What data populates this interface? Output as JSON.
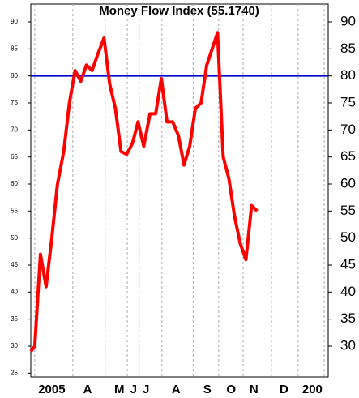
{
  "chart_data": {
    "type": "line",
    "title": "Money Flow Index (55.1740)",
    "x": [
      0,
      0.7,
      1.7,
      2.7,
      3.7,
      4.7,
      5.8,
      6.8,
      7.8,
      8.8,
      9.8,
      10.8,
      11.8,
      12.9,
      13.9,
      14.9,
      15.9,
      16.9,
      17.9,
      18.9,
      19.9,
      21,
      22,
      23,
      24,
      25,
      26,
      27,
      28,
      29,
      30,
      31,
      32.9,
      33.9,
      34.9,
      35.9,
      36.9,
      37.9,
      38.9,
      39.9
    ],
    "series": [
      {
        "color": "#ff0000",
        "values": [
          29,
          30,
          47,
          41,
          50,
          60,
          66,
          75,
          81,
          79,
          82,
          81,
          84,
          87,
          78.5,
          74,
          66,
          65.5,
          67.5,
          71.5,
          67,
          73,
          73,
          79.5,
          71.5,
          71.5,
          69,
          63.5,
          67,
          74,
          75,
          82,
          88,
          65,
          61,
          54,
          49,
          46,
          56,
          55
        ]
      }
    ],
    "xlim": [
      0,
      52.4
    ],
    "xticks": [
      {
        "value": 3.7,
        "label": "2005"
      },
      {
        "value": 10,
        "label": "A"
      },
      {
        "value": 15.6,
        "label": "M"
      },
      {
        "value": 18.1,
        "label": "J"
      },
      {
        "value": 20.3,
        "label": "J"
      },
      {
        "value": 25.6,
        "label": "A"
      },
      {
        "value": 31.1,
        "label": "S"
      },
      {
        "value": 35.3,
        "label": "O"
      },
      {
        "value": 39.3,
        "label": "N"
      },
      {
        "value": 44.6,
        "label": "D"
      },
      {
        "value": 49.6,
        "label": "200"
      }
    ],
    "x_grid": [
      0.7,
      7.4,
      13.1,
      17,
      19.1,
      23.1,
      28.6,
      33.1,
      37.4,
      42.4,
      47.1,
      51.7
    ],
    "ylim": [
      24.3,
      93.3
    ],
    "yticks": [
      25,
      30,
      35,
      40,
      45,
      50,
      55,
      60,
      65,
      70,
      75,
      80,
      85,
      90
    ],
    "y2lim": [
      24.3,
      93.3
    ],
    "y2ticks": [
      30,
      35,
      40,
      45,
      50,
      55,
      60,
      65,
      70,
      75,
      80,
      85,
      90
    ],
    "hline": {
      "value": 80,
      "color": "#0000cc"
    }
  }
}
